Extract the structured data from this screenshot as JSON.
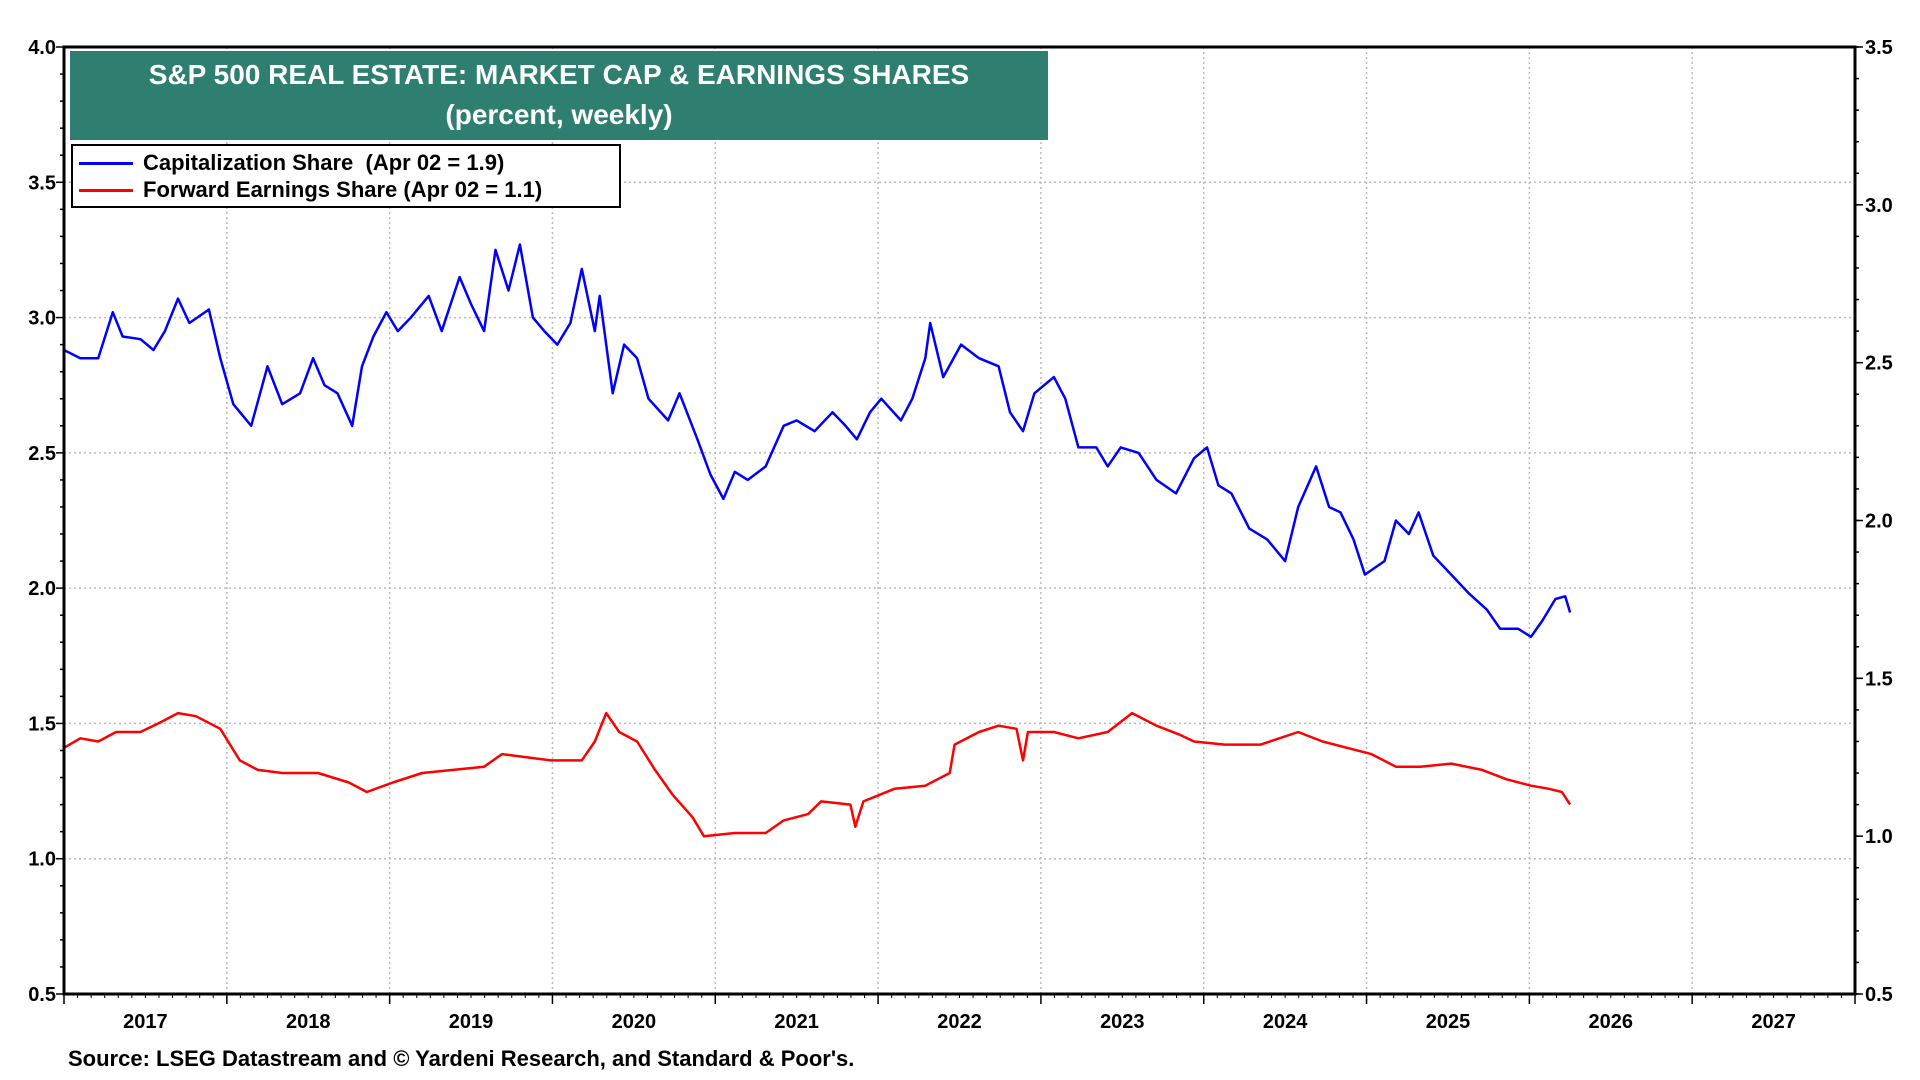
{
  "chart_data": {
    "type": "line",
    "title": "S&P 500 REAL ESTATE: MARKET CAP & EARNINGS SHARES",
    "subtitle": "(percent, weekly)",
    "source": "Source: LSEG Datastream and © Yardeni Research, and Standard & Poor's.",
    "x_range": [
      2017,
      2028
    ],
    "x_tick_labels": [
      "2017",
      "2018",
      "2019",
      "2020",
      "2021",
      "2022",
      "2023",
      "2024",
      "2025",
      "2026",
      "2027"
    ],
    "y_left": {
      "range": [
        0.5,
        4.0
      ],
      "ticks": [
        "0.5",
        "1.0",
        "1.5",
        "2.0",
        "2.5",
        "3.0",
        "3.5",
        "4.0"
      ]
    },
    "y_right": {
      "range": [
        0.5,
        3.5
      ],
      "ticks": [
        "0.5",
        "1.0",
        "1.5",
        "2.0",
        "2.5",
        "3.0",
        "3.5"
      ]
    },
    "grid": true,
    "legend_placement": "top-left",
    "series": [
      {
        "name": "Capitalization Share  (Apr 02 = 1.9)",
        "axis": "left",
        "color": "#0000ff",
        "x": [
          2017.0,
          2017.1,
          2017.21,
          2017.3,
          2017.36,
          2017.47,
          2017.55,
          2017.62,
          2017.7,
          2017.77,
          2017.89,
          2017.96,
          2018.04,
          2018.15,
          2018.25,
          2018.34,
          2018.45,
          2018.53,
          2018.6,
          2018.68,
          2018.77,
          2018.83,
          2018.9,
          2018.98,
          2019.05,
          2019.13,
          2019.24,
          2019.32,
          2019.43,
          2019.5,
          2019.58,
          2019.65,
          2019.73,
          2019.8,
          2019.88,
          2019.95,
          2020.03,
          2020.11,
          2020.18,
          2020.26,
          2020.29,
          2020.37,
          2020.44,
          2020.52,
          2020.59,
          2020.71,
          2020.78,
          2020.89,
          2020.97,
          2021.05,
          2021.12,
          2021.2,
          2021.31,
          2021.42,
          2021.5,
          2021.61,
          2021.72,
          2021.8,
          2021.87,
          2021.95,
          2022.02,
          2022.14,
          2022.21,
          2022.29,
          2022.32,
          2022.4,
          2022.51,
          2022.62,
          2022.74,
          2022.81,
          2022.89,
          2022.96,
          2023.08,
          2023.15,
          2023.23,
          2023.34,
          2023.41,
          2023.49,
          2023.6,
          2023.71,
          2023.83,
          2023.94,
          2024.02,
          2024.09,
          2024.17,
          2024.28,
          2024.39,
          2024.5,
          2024.58,
          2024.69,
          2024.77,
          2024.84,
          2024.92,
          2024.99,
          2025.11,
          2025.18,
          2025.26,
          2025.32,
          2025.41,
          2025.52,
          2025.63,
          2025.74,
          2025.82,
          2025.93,
          2026.01,
          2026.08,
          2026.16,
          2026.22,
          2026.25
        ],
        "y": [
          2.88,
          2.85,
          2.85,
          3.02,
          2.93,
          2.92,
          2.88,
          2.95,
          3.07,
          2.98,
          3.03,
          2.85,
          2.68,
          2.6,
          2.82,
          2.68,
          2.72,
          2.85,
          2.75,
          2.72,
          2.6,
          2.82,
          2.93,
          3.02,
          2.95,
          3.0,
          3.08,
          2.95,
          3.15,
          3.05,
          2.95,
          3.25,
          3.1,
          3.27,
          3.0,
          2.95,
          2.9,
          2.98,
          3.18,
          2.95,
          3.08,
          2.72,
          2.9,
          2.85,
          2.7,
          2.62,
          2.72,
          2.55,
          2.42,
          2.33,
          2.43,
          2.4,
          2.45,
          2.6,
          2.62,
          2.58,
          2.65,
          2.6,
          2.55,
          2.65,
          2.7,
          2.62,
          2.7,
          2.85,
          2.98,
          2.78,
          2.9,
          2.85,
          2.82,
          2.65,
          2.58,
          2.72,
          2.78,
          2.7,
          2.52,
          2.52,
          2.45,
          2.52,
          2.5,
          2.4,
          2.35,
          2.48,
          2.52,
          2.38,
          2.35,
          2.22,
          2.18,
          2.1,
          2.3,
          2.45,
          2.3,
          2.28,
          2.18,
          2.05,
          2.1,
          2.25,
          2.2,
          2.28,
          2.12,
          2.05,
          1.98,
          1.92,
          1.85,
          1.85,
          1.82,
          1.88,
          1.96,
          1.97,
          1.91
        ]
      },
      {
        "name": "Forward Earnings Share (Apr 02 = 1.1)",
        "axis": "right",
        "color": "#ff0000",
        "x": [
          2017.0,
          2017.1,
          2017.21,
          2017.32,
          2017.47,
          2017.59,
          2017.7,
          2017.81,
          2017.96,
          2018.08,
          2018.19,
          2018.34,
          2018.56,
          2018.75,
          2018.86,
          2019.02,
          2019.2,
          2019.39,
          2019.58,
          2019.69,
          2019.84,
          2019.99,
          2020.18,
          2020.26,
          2020.33,
          2020.41,
          2020.52,
          2020.63,
          2020.74,
          2020.86,
          2020.93,
          2021.12,
          2021.31,
          2021.42,
          2021.57,
          2021.65,
          2021.83,
          2021.86,
          2021.91,
          2022.1,
          2022.29,
          2022.44,
          2022.47,
          2022.62,
          2022.74,
          2022.85,
          2022.89,
          2022.92,
          2023.08,
          2023.23,
          2023.41,
          2023.56,
          2023.71,
          2023.86,
          2023.94,
          2024.13,
          2024.35,
          2024.58,
          2024.73,
          2024.88,
          2025.03,
          2025.18,
          2025.33,
          2025.52,
          2025.71,
          2025.86,
          2026.01,
          2026.12,
          2026.2,
          2026.25
        ],
        "y": [
          1.28,
          1.31,
          1.3,
          1.33,
          1.33,
          1.36,
          1.39,
          1.38,
          1.34,
          1.24,
          1.21,
          1.2,
          1.2,
          1.17,
          1.14,
          1.17,
          1.2,
          1.21,
          1.22,
          1.26,
          1.25,
          1.24,
          1.24,
          1.3,
          1.39,
          1.33,
          1.3,
          1.21,
          1.13,
          1.06,
          1.0,
          1.01,
          1.01,
          1.05,
          1.07,
          1.11,
          1.1,
          1.03,
          1.11,
          1.15,
          1.16,
          1.2,
          1.29,
          1.33,
          1.35,
          1.34,
          1.24,
          1.33,
          1.33,
          1.31,
          1.33,
          1.39,
          1.35,
          1.32,
          1.3,
          1.29,
          1.29,
          1.33,
          1.3,
          1.28,
          1.26,
          1.22,
          1.22,
          1.23,
          1.21,
          1.18,
          1.16,
          1.15,
          1.14,
          1.1
        ]
      }
    ]
  }
}
